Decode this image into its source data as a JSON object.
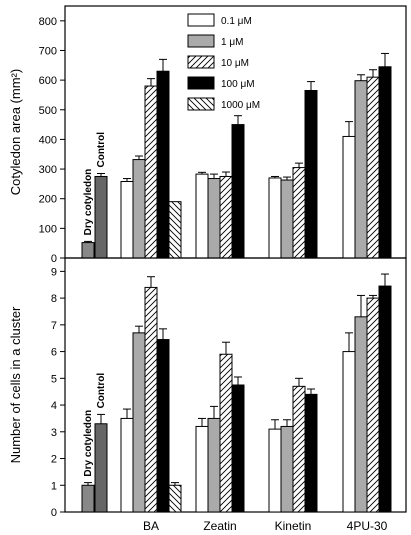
{
  "chart_data": [
    {
      "type": "bar",
      "ylabel": "Cotyledon area (mm²)",
      "ylim": [
        0,
        850
      ],
      "yticks": [
        0,
        100,
        200,
        300,
        400,
        500,
        600,
        700,
        800
      ],
      "categories": [
        "BA",
        "Zeatin",
        "Kinetin",
        "4PU-30"
      ],
      "controls": [
        {
          "label": "Dry cotyledon",
          "value": 52,
          "error": 4
        },
        {
          "label": "Control",
          "value": 275,
          "error": 10
        }
      ],
      "series": [
        {
          "name": "0.1 μM",
          "values": [
            258,
            283,
            270,
            410
          ],
          "errors": [
            10,
            6,
            5,
            50
          ]
        },
        {
          "name": "1 μM",
          "values": [
            332,
            268,
            263,
            598
          ],
          "errors": [
            12,
            15,
            10,
            20
          ]
        },
        {
          "name": "10 μM",
          "values": [
            580,
            275,
            305,
            610
          ],
          "errors": [
            25,
            15,
            15,
            25
          ]
        },
        {
          "name": "100 μM",
          "values": [
            630,
            450,
            565,
            645
          ],
          "errors": [
            40,
            30,
            30,
            45
          ]
        },
        {
          "name": "1000 μM",
          "values": [
            190,
            null,
            null,
            null
          ],
          "errors": [
            null,
            null,
            null,
            null
          ]
        }
      ],
      "legend": "top-center"
    },
    {
      "type": "bar",
      "ylabel": "Number of cells in a cluster",
      "ylim": [
        0,
        9.5
      ],
      "yticks": [
        0,
        1,
        2,
        3,
        4,
        5,
        6,
        7,
        8,
        9
      ],
      "categories": [
        "BA",
        "Zeatin",
        "Kinetin",
        "4PU-30"
      ],
      "controls": [
        {
          "label": "Dry cotyledon",
          "value": 1.0,
          "error": 0.1
        },
        {
          "label": "Control",
          "value": 3.3,
          "error": 0.35
        }
      ],
      "series": [
        {
          "name": "0.1 μM",
          "values": [
            3.5,
            3.2,
            3.1,
            6.0
          ],
          "errors": [
            0.35,
            0.3,
            0.35,
            0.7
          ]
        },
        {
          "name": "1 μM",
          "values": [
            6.7,
            3.5,
            3.2,
            7.3
          ],
          "errors": [
            0.25,
            0.45,
            0.25,
            0.8
          ]
        },
        {
          "name": "10 μM",
          "values": [
            8.4,
            5.9,
            4.7,
            8.0
          ],
          "errors": [
            0.4,
            0.45,
            0.3,
            0.1
          ]
        },
        {
          "name": "100 μM",
          "values": [
            6.45,
            4.75,
            4.4,
            8.45
          ],
          "errors": [
            0.4,
            0.3,
            0.2,
            0.45
          ]
        },
        {
          "name": "1000 μM",
          "values": [
            1.0,
            null,
            null,
            null
          ],
          "errors": [
            0.1,
            null,
            null,
            null
          ]
        }
      ]
    }
  ],
  "styles": {
    "series": [
      "white",
      "#aaaaaa",
      "diag-hatch",
      "#000000",
      "anti-hatch"
    ],
    "controls": [
      "#888888",
      "#666666"
    ]
  }
}
